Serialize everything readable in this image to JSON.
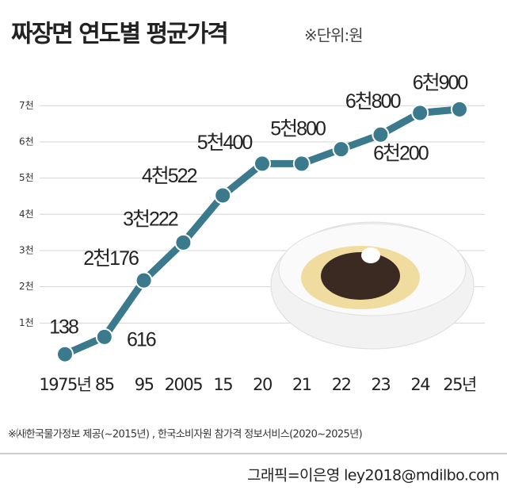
{
  "chart_data": {
    "type": "line",
    "title": "짜장면 연도별 평균가격",
    "subtitle": "※단위:원",
    "categories": [
      "1975년",
      "85",
      "95",
      "2005",
      "15",
      "20",
      "21",
      "22",
      "23",
      "24",
      "25년"
    ],
    "series": [
      {
        "name": "평균가격",
        "color": "#3b7a8c",
        "values": [
          138,
          616,
          2176,
          3222,
          4522,
          5400,
          5400,
          5800,
          6200,
          6800,
          6900
        ],
        "value_labels": [
          "138",
          "616",
          "2천176",
          "3천222",
          "4천522",
          "5천400",
          null,
          "5천800",
          "6천200",
          "6천800",
          "6천900"
        ]
      }
    ],
    "ylim": [
      0,
      7400
    ],
    "yticks": [
      {
        "value": 1000,
        "label": "1천"
      },
      {
        "value": 2000,
        "label": "2천"
      },
      {
        "value": 3000,
        "label": "3천"
      },
      {
        "value": 4000,
        "label": "4천"
      },
      {
        "value": 5000,
        "label": "5천"
      },
      {
        "value": 6000,
        "label": "6천"
      },
      {
        "value": 7000,
        "label": "7천"
      }
    ],
    "grid": true,
    "note": "※㈔한국물가정보 제공(~2015년) , 한국소비자원 참가격 정보서비스(2020~2025년)",
    "credit": "그래픽=이은영 ley2018@mdilbo.com"
  }
}
